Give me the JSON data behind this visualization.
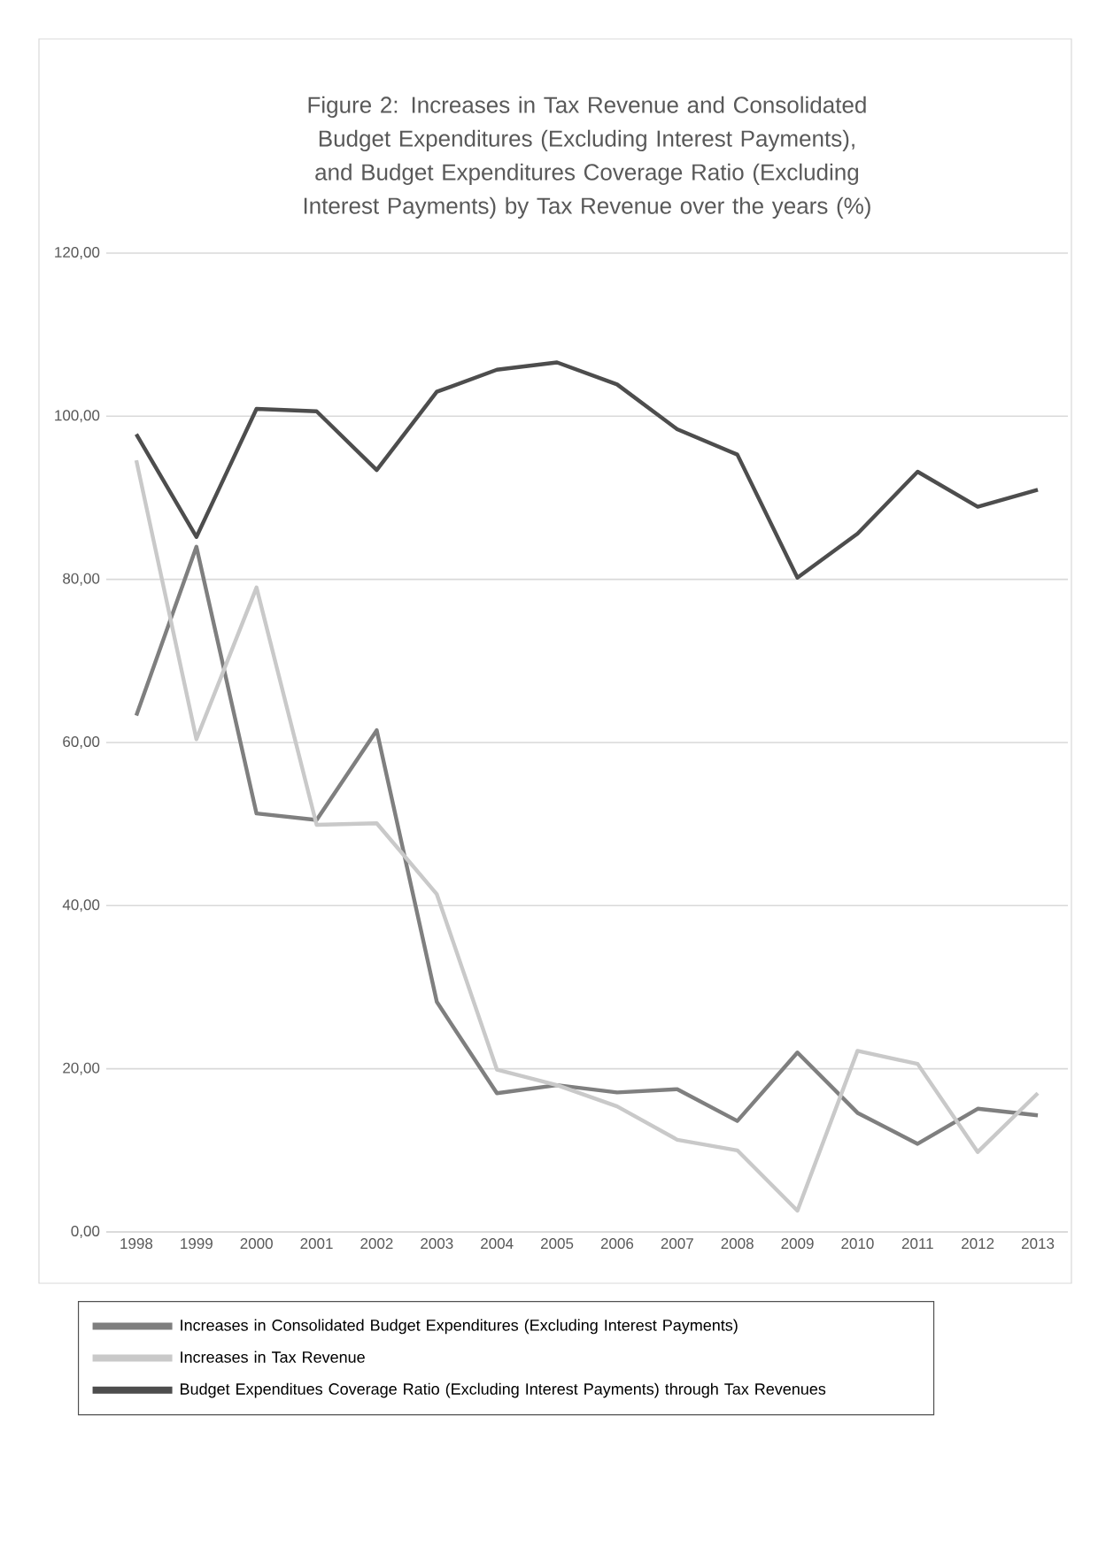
{
  "chart_data": {
    "type": "line",
    "title": "Figure 2: Increases in Tax Revenue and Consolidated Budget Expenditures (Excluding Interest Payments), and Budget Expenditures Coverage Ratio (Excluding Interest Payments) by Tax Revenue over the years (%)",
    "categories": [
      "1998",
      "1999",
      "2000",
      "2001",
      "2002",
      "2003",
      "2004",
      "2005",
      "2006",
      "2007",
      "2008",
      "2009",
      "2010",
      "2011",
      "2012",
      "2013"
    ],
    "series": [
      {
        "name": "Increases in Consolidated Budget Expenditures (Excluding Interest Payments)",
        "color": "#7f7f7f",
        "values": [
          63.3,
          84.0,
          51.3,
          50.5,
          61.5,
          28.2,
          17.0,
          18.0,
          17.1,
          17.5,
          13.6,
          22.0,
          14.6,
          10.8,
          15.1,
          14.3
        ]
      },
      {
        "name": "Increases in Tax Revenue",
        "color": "#c9c9c9",
        "values": [
          94.6,
          60.4,
          79.0,
          49.9,
          50.1,
          41.4,
          19.9,
          18.0,
          15.4,
          11.3,
          10.0,
          2.6,
          22.2,
          20.6,
          9.8,
          17.0
        ]
      },
      {
        "name": "Budget Expenditues Coverage Ratio (Excluding Interest Payments) through  Tax Revenues",
        "color": "#4d4d4d",
        "values": [
          97.8,
          85.2,
          100.9,
          100.6,
          93.4,
          103.0,
          105.7,
          106.6,
          103.9,
          98.4,
          95.3,
          80.2,
          85.6,
          93.2,
          88.9,
          91.0
        ]
      }
    ],
    "ylim": [
      0,
      120
    ],
    "yticks": [
      {
        "value": 0,
        "label": "0,00"
      },
      {
        "value": 20,
        "label": "20,00"
      },
      {
        "value": 40,
        "label": "40,00"
      },
      {
        "value": 60,
        "label": "60,00"
      },
      {
        "value": 80,
        "label": "80,00"
      },
      {
        "value": 100,
        "label": "100,00"
      },
      {
        "value": 120,
        "label": "120,00"
      }
    ],
    "grid": "y",
    "legend": "bottom",
    "marker": "none",
    "line_style": "solid"
  }
}
